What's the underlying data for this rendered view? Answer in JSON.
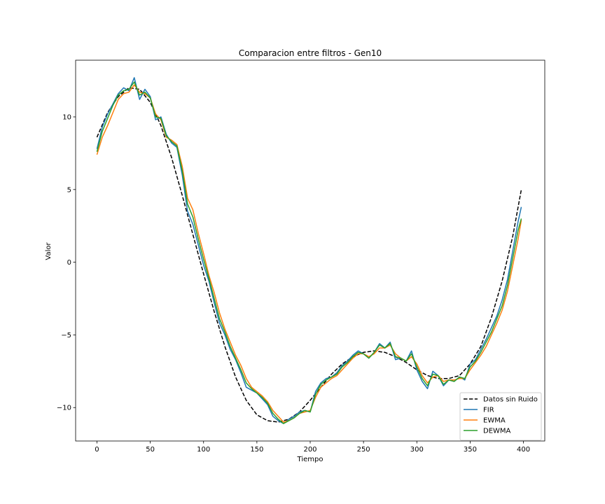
{
  "chart_data": {
    "type": "line",
    "title": "Comparacion entre filtros - Gen10",
    "xlabel": "Tiempo",
    "ylabel": "Valor",
    "xlim": [
      -20,
      420
    ],
    "ylim": [
      -12.3,
      13.9
    ],
    "xticks": [
      0,
      50,
      100,
      150,
      200,
      250,
      300,
      350,
      400
    ],
    "yticks": [
      -10,
      -5,
      0,
      5,
      10
    ],
    "grid": false,
    "legend_position": "lower-right",
    "series": [
      {
        "name": "Datos sin Ruido",
        "color": "#000000",
        "dashed": true,
        "x": [
          0,
          10,
          20,
          30,
          40,
          50,
          60,
          70,
          80,
          90,
          100,
          110,
          120,
          130,
          140,
          150,
          160,
          170,
          180,
          190,
          200,
          210,
          220,
          230,
          240,
          250,
          260,
          270,
          280,
          290,
          300,
          310,
          320,
          330,
          340,
          350,
          360,
          370,
          380,
          390,
          398
        ],
        "values": [
          8.6,
          10.3,
          11.4,
          12.0,
          11.9,
          11.0,
          9.4,
          7.2,
          4.6,
          1.9,
          -0.8,
          -3.4,
          -5.8,
          -7.9,
          -9.5,
          -10.5,
          -10.9,
          -11.0,
          -10.8,
          -10.3,
          -9.5,
          -8.6,
          -7.7,
          -7.0,
          -6.5,
          -6.2,
          -6.1,
          -6.2,
          -6.5,
          -6.9,
          -7.4,
          -7.8,
          -8.0,
          -8.0,
          -7.8,
          -7.0,
          -5.8,
          -3.8,
          -1.3,
          1.8,
          5.0
        ]
      },
      {
        "name": "FIR",
        "color": "#1f77b4",
        "x": [
          0,
          5,
          10,
          15,
          20,
          25,
          30,
          35,
          40,
          45,
          50,
          55,
          60,
          65,
          70,
          75,
          80,
          85,
          90,
          95,
          100,
          105,
          110,
          115,
          120,
          125,
          130,
          135,
          140,
          145,
          150,
          155,
          160,
          165,
          170,
          175,
          180,
          185,
          190,
          195,
          200,
          205,
          210,
          215,
          220,
          225,
          230,
          235,
          240,
          245,
          250,
          255,
          260,
          265,
          270,
          275,
          280,
          285,
          290,
          295,
          300,
          305,
          310,
          315,
          320,
          325,
          330,
          335,
          340,
          345,
          350,
          355,
          360,
          365,
          370,
          375,
          380,
          385,
          390,
          395,
          398
        ],
        "values": [
          7.8,
          9.3,
          10.2,
          10.9,
          11.6,
          12.0,
          11.8,
          12.7,
          11.2,
          11.9,
          11.4,
          9.8,
          10.0,
          8.8,
          8.2,
          7.9,
          6.0,
          3.5,
          2.6,
          1.2,
          -0.2,
          -1.3,
          -2.8,
          -4.2,
          -5.0,
          -6.0,
          -6.7,
          -7.6,
          -8.6,
          -8.8,
          -9.0,
          -9.4,
          -9.8,
          -10.6,
          -10.9,
          -11.1,
          -10.8,
          -10.6,
          -10.3,
          -10.2,
          -10.3,
          -8.9,
          -8.3,
          -8.0,
          -7.9,
          -7.6,
          -7.1,
          -6.8,
          -6.4,
          -6.1,
          -6.3,
          -6.6,
          -6.2,
          -5.6,
          -5.9,
          -5.5,
          -6.7,
          -6.6,
          -6.8,
          -6.1,
          -7.4,
          -8.2,
          -8.7,
          -7.5,
          -7.8,
          -8.5,
          -8.1,
          -8.2,
          -7.9,
          -8.1,
          -7.0,
          -6.7,
          -6.0,
          -5.3,
          -4.5,
          -3.7,
          -2.6,
          -1.2,
          0.8,
          2.8,
          3.8
        ]
      },
      {
        "name": "EWMA",
        "color": "#ff7f0e",
        "x": [
          0,
          5,
          10,
          15,
          20,
          25,
          30,
          35,
          40,
          45,
          50,
          55,
          60,
          65,
          70,
          75,
          80,
          85,
          90,
          95,
          100,
          105,
          110,
          115,
          120,
          125,
          130,
          135,
          140,
          145,
          150,
          155,
          160,
          165,
          170,
          175,
          180,
          185,
          190,
          195,
          200,
          205,
          210,
          215,
          220,
          225,
          230,
          235,
          240,
          245,
          250,
          255,
          260,
          265,
          270,
          275,
          280,
          285,
          290,
          295,
          300,
          305,
          310,
          315,
          320,
          325,
          330,
          335,
          340,
          345,
          350,
          355,
          360,
          365,
          370,
          375,
          380,
          385,
          390,
          395,
          398
        ],
        "values": [
          7.4,
          8.6,
          9.4,
          10.3,
          11.2,
          11.6,
          11.7,
          12.2,
          11.7,
          11.6,
          11.3,
          10.2,
          9.8,
          8.6,
          8.4,
          8.1,
          6.6,
          4.4,
          3.6,
          2.0,
          0.6,
          -0.9,
          -2.1,
          -3.5,
          -4.6,
          -5.5,
          -6.4,
          -7.1,
          -8.0,
          -8.6,
          -8.9,
          -9.2,
          -9.6,
          -10.2,
          -10.6,
          -11.0,
          -10.9,
          -10.7,
          -10.4,
          -10.3,
          -10.2,
          -9.3,
          -8.6,
          -8.3,
          -8.0,
          -7.8,
          -7.4,
          -7.0,
          -6.6,
          -6.3,
          -6.3,
          -6.5,
          -6.3,
          -5.9,
          -5.9,
          -5.7,
          -6.3,
          -6.6,
          -6.8,
          -6.5,
          -7.0,
          -7.8,
          -8.3,
          -7.9,
          -7.8,
          -8.2,
          -8.1,
          -8.1,
          -8.0,
          -8.0,
          -7.4,
          -6.9,
          -6.4,
          -5.8,
          -5.0,
          -4.2,
          -3.3,
          -2.0,
          -0.2,
          1.6,
          2.9
        ]
      },
      {
        "name": "DEWMA",
        "color": "#2ca02c",
        "x": [
          0,
          5,
          10,
          15,
          20,
          25,
          30,
          35,
          40,
          45,
          50,
          55,
          60,
          65,
          70,
          75,
          80,
          85,
          90,
          95,
          100,
          105,
          110,
          115,
          120,
          125,
          130,
          135,
          140,
          145,
          150,
          155,
          160,
          165,
          170,
          175,
          180,
          185,
          190,
          195,
          200,
          205,
          210,
          215,
          220,
          225,
          230,
          235,
          240,
          245,
          250,
          255,
          260,
          265,
          270,
          275,
          280,
          285,
          290,
          295,
          300,
          305,
          310,
          315,
          320,
          325,
          330,
          335,
          340,
          345,
          350,
          355,
          360,
          365,
          370,
          375,
          380,
          385,
          390,
          395,
          398
        ],
        "values": [
          7.6,
          9.0,
          9.9,
          10.8,
          11.5,
          11.8,
          11.9,
          12.4,
          11.5,
          11.7,
          11.3,
          10.0,
          9.9,
          8.7,
          8.3,
          8.0,
          6.3,
          4.0,
          3.1,
          1.6,
          0.2,
          -1.1,
          -2.5,
          -3.9,
          -4.8,
          -5.8,
          -6.6,
          -7.4,
          -8.3,
          -8.7,
          -9.0,
          -9.3,
          -9.7,
          -10.4,
          -10.8,
          -11.1,
          -10.9,
          -10.7,
          -10.4,
          -10.2,
          -10.3,
          -9.1,
          -8.4,
          -8.1,
          -7.9,
          -7.7,
          -7.2,
          -6.9,
          -6.5,
          -6.2,
          -6.3,
          -6.6,
          -6.2,
          -5.7,
          -5.9,
          -5.6,
          -6.5,
          -6.6,
          -6.8,
          -6.3,
          -7.2,
          -8.0,
          -8.5,
          -7.7,
          -7.8,
          -8.4,
          -8.1,
          -8.2,
          -7.9,
          -8.0,
          -7.2,
          -6.8,
          -6.2,
          -5.5,
          -4.8,
          -3.9,
          -3.0,
          -1.6,
          0.3,
          2.2,
          3.0
        ]
      }
    ]
  }
}
